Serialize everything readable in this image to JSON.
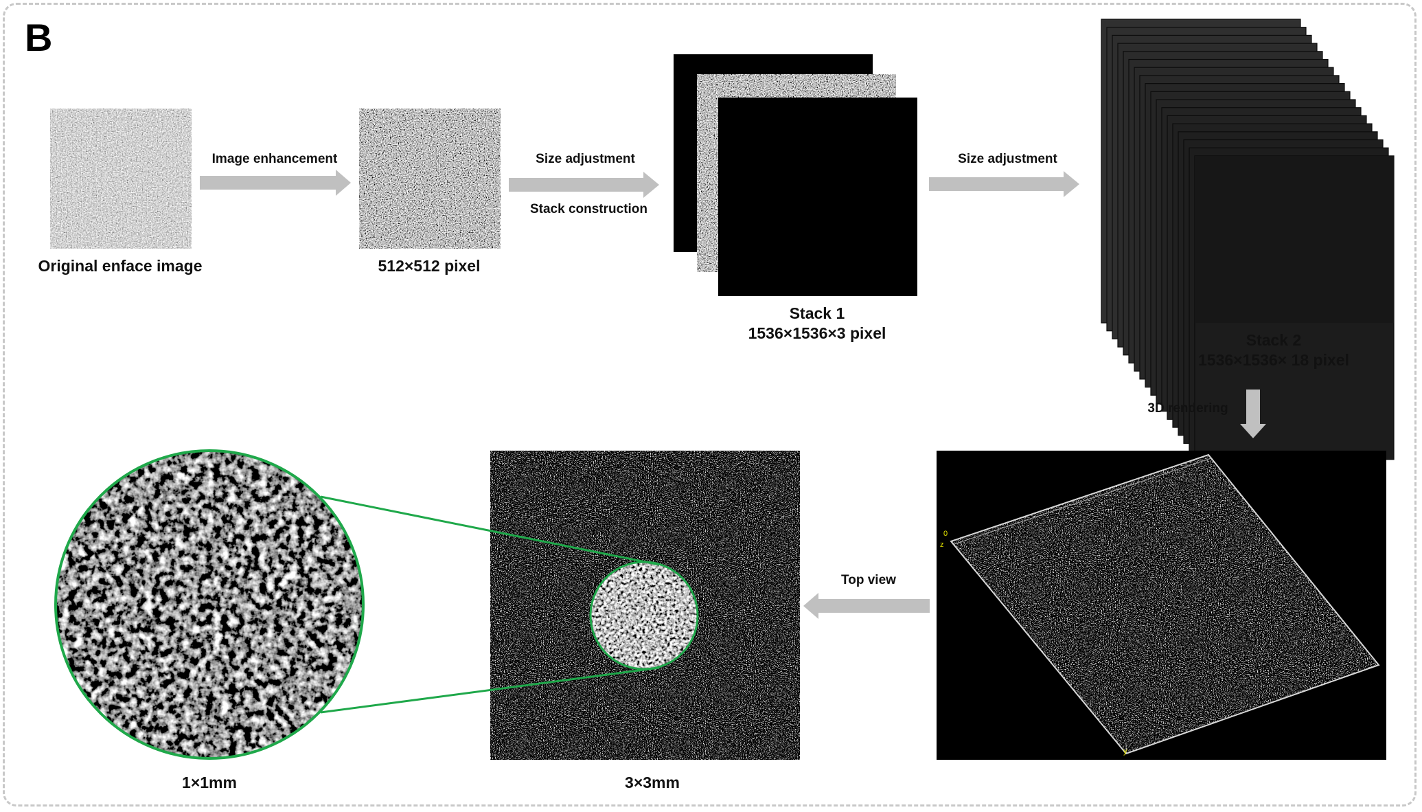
{
  "panel_letter": "B",
  "steps": {
    "original": "Original enface image",
    "enhanced": "512×512 pixel",
    "stack1_title": "Stack 1",
    "stack1_size": "1536×1536×3 pixel",
    "stack2_title": "Stack 2",
    "stack2_size": "1536×1536× 18 pixel",
    "zoom_label": "1×1mm",
    "topview_label": "3×3mm"
  },
  "arrows": {
    "a1": "Image enhancement",
    "a2_top": "Size adjustment",
    "a2_bottom": "Stack construction",
    "a3": "Size adjustment",
    "a4": "3D rendering",
    "a5": "Top view"
  },
  "render_axis": {
    "tick_0": "0",
    "axis_z": "z",
    "axis_y": "y"
  },
  "colors": {
    "arrow": "#c0c0c0",
    "zoom_circle": "#1fa84a",
    "axis_text": "#e6e600",
    "frame": "#c8c8c8"
  }
}
